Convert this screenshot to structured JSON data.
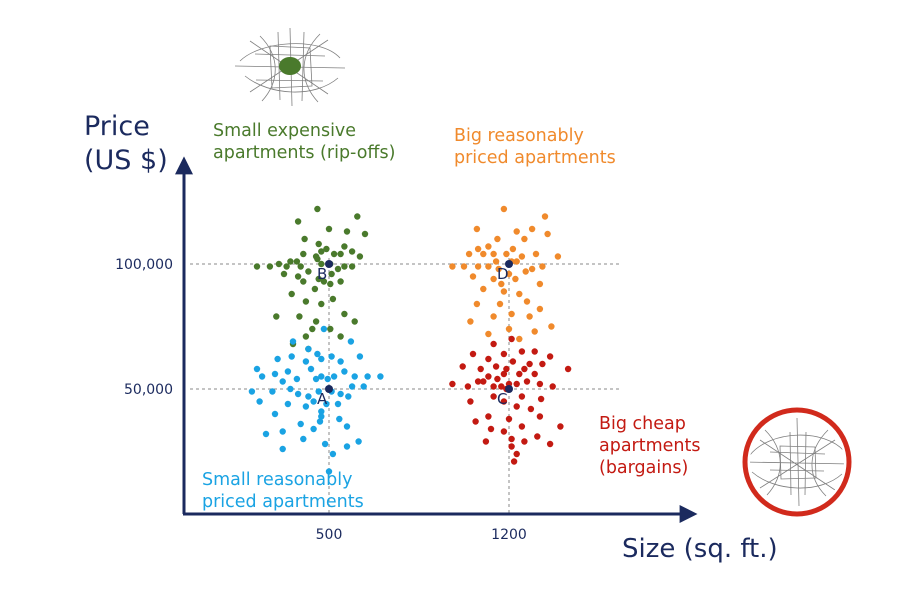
{
  "chart_data": {
    "type": "scatter",
    "xlabel": "Size (sq. ft.)",
    "ylabel": [
      "Price",
      "(US $)"
    ],
    "x_ticks": [
      {
        "value": 500,
        "label": "500"
      },
      {
        "value": 1200,
        "label": "1200"
      }
    ],
    "y_ticks": [
      {
        "value": 50000,
        "label": "50,000"
      },
      {
        "value": 100000,
        "label": "100,000"
      }
    ],
    "xlim": [
      100,
      1900
    ],
    "ylim": [
      -5000,
      130000
    ],
    "grid": "dashed reference lines at the cluster centers",
    "clusters": [
      {
        "id": "B",
        "label_lines": [
          "Small expensive",
          "apartments (rip-offs)"
        ],
        "color": "#4a7a2c",
        "center": {
          "x": 500,
          "y": 100000
        },
        "points": [
          [
            455,
            122000
          ],
          [
            500,
            114000
          ],
          [
            610,
            119000
          ],
          [
            380,
            117000
          ],
          [
            570,
            113000
          ],
          [
            405,
            110000
          ],
          [
            640,
            112000
          ],
          [
            460,
            108000
          ],
          [
            490,
            106000
          ],
          [
            560,
            107000
          ],
          [
            400,
            104000
          ],
          [
            470,
            105000
          ],
          [
            450,
            103000
          ],
          [
            520,
            104000
          ],
          [
            545,
            104000
          ],
          [
            590,
            105000
          ],
          [
            620,
            103000
          ],
          [
            455,
            102000
          ],
          [
            375,
            101000
          ],
          [
            350,
            101000
          ],
          [
            390,
            99000
          ],
          [
            220,
            99000
          ],
          [
            270,
            99000
          ],
          [
            305,
            100000
          ],
          [
            335,
            99000
          ],
          [
            470,
            100000
          ],
          [
            505,
            100000
          ],
          [
            535,
            98000
          ],
          [
            560,
            99000
          ],
          [
            590,
            99000
          ],
          [
            420,
            97000
          ],
          [
            510,
            96000
          ],
          [
            460,
            94000
          ],
          [
            325,
            96000
          ],
          [
            380,
            95000
          ],
          [
            400,
            93000
          ],
          [
            480,
            93000
          ],
          [
            505,
            92000
          ],
          [
            545,
            93000
          ],
          [
            445,
            90000
          ],
          [
            355,
            88000
          ],
          [
            410,
            85000
          ],
          [
            515,
            86000
          ],
          [
            470,
            84000
          ],
          [
            560,
            80000
          ],
          [
            295,
            79000
          ],
          [
            385,
            79000
          ],
          [
            450,
            77000
          ],
          [
            600,
            77000
          ],
          [
            435,
            74000
          ],
          [
            505,
            74000
          ],
          [
            545,
            71000
          ],
          [
            410,
            71000
          ],
          [
            360,
            68000
          ],
          [
            420,
            66000
          ]
        ]
      },
      {
        "id": "D",
        "label_lines": [
          "Big reasonably",
          "priced apartments"
        ],
        "color": "#f08a2c",
        "center": {
          "x": 1200,
          "y": 100000
        },
        "points": [
          [
            1180,
            122000
          ],
          [
            1340,
            119000
          ],
          [
            1075,
            114000
          ],
          [
            1230,
            113000
          ],
          [
            1290,
            114000
          ],
          [
            1155,
            110000
          ],
          [
            1260,
            110000
          ],
          [
            1350,
            112000
          ],
          [
            1080,
            106000
          ],
          [
            1120,
            107000
          ],
          [
            1215,
            106000
          ],
          [
            1190,
            104000
          ],
          [
            1305,
            104000
          ],
          [
            1045,
            104000
          ],
          [
            1100,
            104000
          ],
          [
            1140,
            104000
          ],
          [
            1250,
            103000
          ],
          [
            1390,
            103000
          ],
          [
            1150,
            101000
          ],
          [
            1230,
            101000
          ],
          [
            1210,
            101000
          ],
          [
            980,
            99000
          ],
          [
            1025,
            99000
          ],
          [
            1080,
            99000
          ],
          [
            1120,
            99000
          ],
          [
            1160,
            98000
          ],
          [
            1290,
            98000
          ],
          [
            1330,
            99000
          ],
          [
            1265,
            97000
          ],
          [
            1200,
            96000
          ],
          [
            1060,
            95000
          ],
          [
            1140,
            94000
          ],
          [
            1225,
            94000
          ],
          [
            1170,
            92000
          ],
          [
            1320,
            92000
          ],
          [
            1100,
            90000
          ],
          [
            1180,
            89000
          ],
          [
            1240,
            88000
          ],
          [
            1270,
            85000
          ],
          [
            1075,
            84000
          ],
          [
            1165,
            84000
          ],
          [
            1320,
            82000
          ],
          [
            1210,
            80000
          ],
          [
            1140,
            79000
          ],
          [
            1280,
            79000
          ],
          [
            1050,
            77000
          ],
          [
            1365,
            75000
          ],
          [
            1200,
            74000
          ],
          [
            1300,
            73000
          ],
          [
            1120,
            72000
          ],
          [
            1240,
            70000
          ]
        ]
      },
      {
        "id": "A",
        "label_lines": [
          "Small reasonably",
          "priced apartments"
        ],
        "color": "#1aa3e3",
        "center": {
          "x": 500,
          "y": 50000
        },
        "points": [
          [
            480,
            74000
          ],
          [
            360,
            69000
          ],
          [
            585,
            69000
          ],
          [
            420,
            66000
          ],
          [
            455,
            64000
          ],
          [
            620,
            63000
          ],
          [
            355,
            63000
          ],
          [
            470,
            62000
          ],
          [
            510,
            63000
          ],
          [
            545,
            61000
          ],
          [
            300,
            62000
          ],
          [
            410,
            61000
          ],
          [
            220,
            58000
          ],
          [
            340,
            57000
          ],
          [
            430,
            58000
          ],
          [
            560,
            57000
          ],
          [
            240,
            55000
          ],
          [
            290,
            56000
          ],
          [
            470,
            55000
          ],
          [
            450,
            54000
          ],
          [
            495,
            54000
          ],
          [
            520,
            55000
          ],
          [
            600,
            55000
          ],
          [
            650,
            55000
          ],
          [
            700,
            55000
          ],
          [
            375,
            54000
          ],
          [
            320,
            53000
          ],
          [
            590,
            51000
          ],
          [
            635,
            51000
          ],
          [
            200,
            49000
          ],
          [
            280,
            49000
          ],
          [
            350,
            50000
          ],
          [
            380,
            48000
          ],
          [
            420,
            47000
          ],
          [
            460,
            49000
          ],
          [
            510,
            49000
          ],
          [
            545,
            48000
          ],
          [
            575,
            47000
          ],
          [
            440,
            45000
          ],
          [
            490,
            44000
          ],
          [
            535,
            44000
          ],
          [
            410,
            43000
          ],
          [
            230,
            45000
          ],
          [
            340,
            44000
          ],
          [
            290,
            40000
          ],
          [
            470,
            41000
          ],
          [
            470,
            39000
          ],
          [
            540,
            38000
          ],
          [
            390,
            36000
          ],
          [
            465,
            37000
          ],
          [
            440,
            34000
          ],
          [
            570,
            35000
          ],
          [
            255,
            32000
          ],
          [
            320,
            33000
          ],
          [
            400,
            30000
          ],
          [
            615,
            29000
          ],
          [
            485,
            28000
          ],
          [
            570,
            27000
          ],
          [
            320,
            26000
          ],
          [
            515,
            24000
          ],
          [
            500,
            17000
          ]
        ]
      },
      {
        "id": "C",
        "label_lines": [
          "Big cheap",
          "apartments",
          "(bargains)"
        ],
        "color": "#c31a12",
        "center": {
          "x": 1200,
          "y": 50000
        },
        "points": [
          [
            1210,
            70000
          ],
          [
            1140,
            68000
          ],
          [
            1250,
            65000
          ],
          [
            1300,
            65000
          ],
          [
            1060,
            64000
          ],
          [
            1180,
            64000
          ],
          [
            1360,
            63000
          ],
          [
            1120,
            62000
          ],
          [
            1215,
            61000
          ],
          [
            1280,
            60000
          ],
          [
            1330,
            60000
          ],
          [
            1020,
            59000
          ],
          [
            1090,
            58000
          ],
          [
            1150,
            59000
          ],
          [
            1190,
            58000
          ],
          [
            1260,
            58000
          ],
          [
            1180,
            56000
          ],
          [
            1240,
            56000
          ],
          [
            1300,
            56000
          ],
          [
            1430,
            58000
          ],
          [
            1120,
            55000
          ],
          [
            1155,
            54000
          ],
          [
            1080,
            53000
          ],
          [
            1100,
            53000
          ],
          [
            1200,
            52000
          ],
          [
            1270,
            53000
          ],
          [
            980,
            52000
          ],
          [
            1040,
            51000
          ],
          [
            1140,
            51000
          ],
          [
            1170,
            51000
          ],
          [
            1230,
            52000
          ],
          [
            1320,
            52000
          ],
          [
            1370,
            51000
          ],
          [
            1190,
            50000
          ],
          [
            1140,
            47000
          ],
          [
            1250,
            47000
          ],
          [
            1325,
            46000
          ],
          [
            1050,
            45000
          ],
          [
            1180,
            45000
          ],
          [
            1230,
            43000
          ],
          [
            1285,
            42000
          ],
          [
            1120,
            39000
          ],
          [
            1200,
            38000
          ],
          [
            1320,
            39000
          ],
          [
            1070,
            37000
          ],
          [
            1250,
            35000
          ],
          [
            1400,
            35000
          ],
          [
            1130,
            34000
          ],
          [
            1180,
            33000
          ],
          [
            1310,
            31000
          ],
          [
            1210,
            30000
          ],
          [
            1260,
            29000
          ],
          [
            1210,
            27000
          ],
          [
            1360,
            28000
          ],
          [
            1110,
            29000
          ],
          [
            1230,
            24000
          ],
          [
            1220,
            21000
          ]
        ]
      }
    ]
  }
}
